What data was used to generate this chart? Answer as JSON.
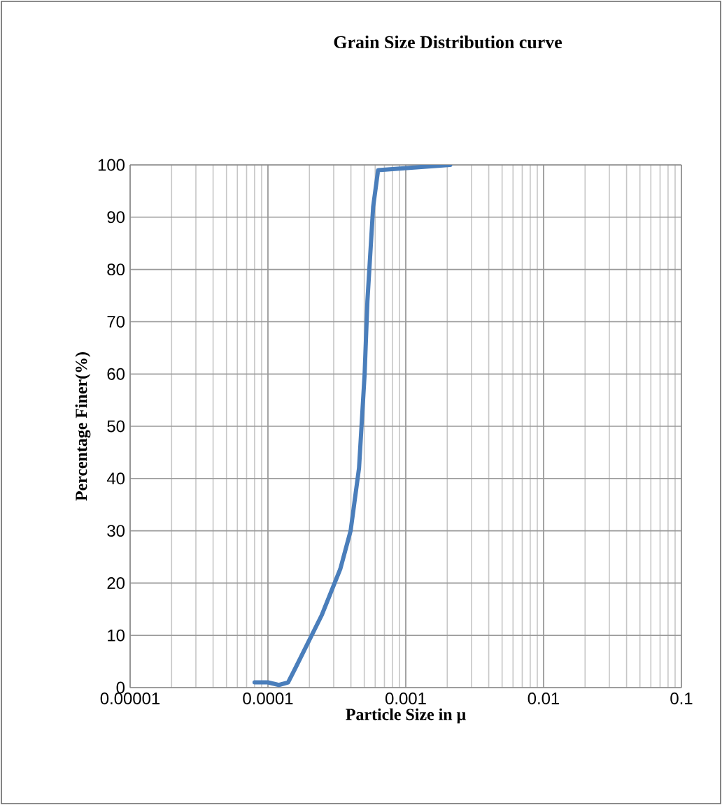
{
  "chart_data": {
    "type": "line",
    "title": "Grain Size Distribution curve",
    "xlabel": "Particle Size in μ",
    "ylabel": "Percentage Finer(%)",
    "log": "x",
    "grid": true,
    "xlim": [
      1e-05,
      0.1
    ],
    "ylim": [
      0,
      100
    ],
    "xticks": [
      {
        "value": 1e-05,
        "label": "0.00001"
      },
      {
        "value": 0.0001,
        "label": "0.0001"
      },
      {
        "value": 0.001,
        "label": "0.001"
      },
      {
        "value": 0.01,
        "label": "0.01"
      },
      {
        "value": 0.1,
        "label": "0.1"
      }
    ],
    "yticks": [
      0,
      10,
      20,
      30,
      40,
      50,
      60,
      70,
      80,
      90,
      100
    ],
    "series": [
      {
        "color": "#4a7ebb",
        "x": [
          8e-05,
          0.0001,
          0.00012,
          0.00014,
          0.00016,
          0.000245,
          0.000335,
          0.000398,
          0.000458,
          0.000503,
          0.000527,
          0.00058,
          0.00063,
          0.0021
        ],
        "values": [
          1,
          1,
          0.5,
          1,
          4,
          13.8,
          22.7,
          30,
          42,
          60,
          74,
          92,
          99,
          100
        ]
      }
    ]
  }
}
